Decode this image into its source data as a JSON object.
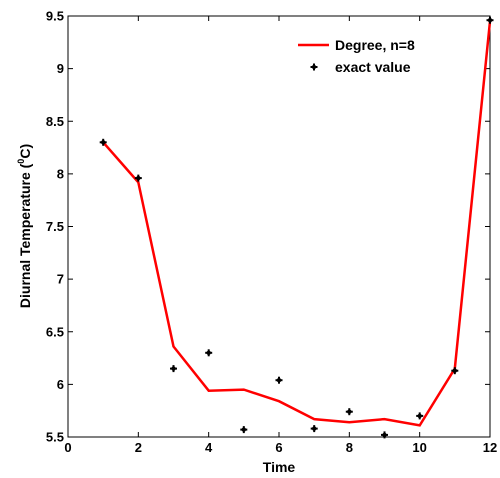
{
  "chart_data": {
    "type": "line",
    "xlabel": "Time",
    "ylabel_main": "Diurnal Temperature (",
    "ylabel_sup": "0",
    "ylabel_end": "C)",
    "xlim": [
      0,
      12
    ],
    "ylim": [
      5.5,
      9.5
    ],
    "xticks": [
      0,
      2,
      4,
      6,
      8,
      10,
      12
    ],
    "yticks": [
      5.5,
      6,
      6.5,
      7,
      7.5,
      8,
      8.5,
      9,
      9.5
    ],
    "grid": false,
    "legend_position": "top-right",
    "series": [
      {
        "name": "Degree, n=8",
        "style": "line",
        "color": "#ff0000",
        "x": [
          1,
          2,
          3,
          4,
          5,
          6,
          7,
          8,
          9,
          10,
          11,
          12
        ],
        "y": [
          8.3,
          7.92,
          6.36,
          5.94,
          5.95,
          5.84,
          5.67,
          5.64,
          5.67,
          5.61,
          6.15,
          9.45
        ]
      },
      {
        "name": "exact value",
        "style": "markers",
        "color": "#000000",
        "x": [
          1,
          2,
          3,
          4,
          5,
          6,
          7,
          8,
          9,
          10,
          11,
          12
        ],
        "y": [
          8.3,
          7.96,
          6.15,
          6.3,
          5.57,
          6.04,
          5.58,
          5.74,
          5.52,
          5.7,
          6.13,
          9.46
        ]
      }
    ]
  }
}
